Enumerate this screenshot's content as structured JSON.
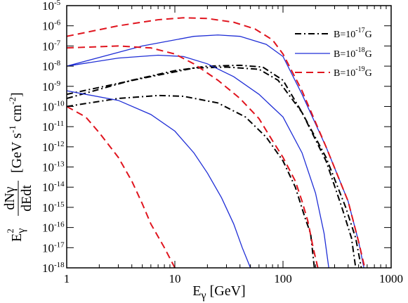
{
  "chart_data": {
    "type": "line",
    "xscale": "log",
    "yscale": "log",
    "xlim": [
      1,
      1000
    ],
    "ylim": [
      1e-18,
      1e-05
    ],
    "x_ticks": [
      {
        "value": 1,
        "label": "1"
      },
      {
        "value": 10,
        "label": "10"
      },
      {
        "value": 100,
        "label": "100"
      },
      {
        "value": 1000,
        "label": "1000"
      }
    ],
    "y_ticks": [
      {
        "value": -5,
        "base": "10",
        "exp": "-5"
      },
      {
        "value": -6,
        "base": "10",
        "exp": "-6"
      },
      {
        "value": -7,
        "base": "10",
        "exp": "-7"
      },
      {
        "value": -8,
        "base": "10",
        "exp": "-8"
      },
      {
        "value": -9,
        "base": "10",
        "exp": "-9"
      },
      {
        "value": -10,
        "base": "10",
        "exp": "-10"
      },
      {
        "value": -11,
        "base": "10",
        "exp": "-11"
      },
      {
        "value": -12,
        "base": "10",
        "exp": "-12"
      },
      {
        "value": -13,
        "base": "10",
        "exp": "-13"
      },
      {
        "value": -14,
        "base": "10",
        "exp": "-14"
      },
      {
        "value": -15,
        "base": "10",
        "exp": "-15"
      },
      {
        "value": -16,
        "base": "10",
        "exp": "-16"
      },
      {
        "value": -17,
        "base": "10",
        "exp": "-17"
      },
      {
        "value": -18,
        "base": "10",
        "exp": "-18"
      }
    ],
    "xlabel": {
      "main": "E",
      "sub": "γ",
      "unit": " [GeV]"
    },
    "ylabel": {
      "prefix": "E",
      "prefix_sub": "γ",
      "prefix_sup": "2",
      "frac_num": "dNγ",
      "frac_den": "dEdt",
      "unit": "[GeV s",
      "unit_sup1": "-1",
      "unit_mid": " cm",
      "unit_sup2": "-2",
      "unit_end": "]"
    },
    "legend_position": "top-right",
    "legend": [
      {
        "base": "B=10",
        "exp": "-17",
        "unit": "G",
        "color": "#000000",
        "dash": "dash-dot"
      },
      {
        "base": "B=10",
        "exp": "-18",
        "unit": "G",
        "color": "#1f2ed6",
        "dash": "solid"
      },
      {
        "base": "B=10",
        "exp": "-19",
        "unit": "G",
        "color": "#e0141e",
        "dash": "dashed"
      }
    ],
    "series": [
      {
        "group": "B=10^-17G",
        "color": "#000000",
        "dash": "dash-dot",
        "points": [
          [
            1,
            4e-10
          ],
          [
            5,
            2.5e-09
          ],
          [
            15,
            8e-09
          ],
          [
            30,
            9e-09
          ],
          [
            60,
            7e-09
          ],
          [
            90,
            2e-09
          ],
          [
            150,
            5e-11
          ],
          [
            250,
            2e-13
          ],
          [
            350,
            1e-15
          ],
          [
            430,
            3e-17
          ],
          [
            470,
            1e-18
          ]
        ]
      },
      {
        "group": "B=10^-17G",
        "color": "#000000",
        "dash": "dash-dot",
        "points": [
          [
            1,
            2.5e-10
          ],
          [
            4,
            2e-09
          ],
          [
            10,
            6e-09
          ],
          [
            20,
            1e-08
          ],
          [
            40,
            1.1e-08
          ],
          [
            65,
            9e-09
          ],
          [
            100,
            2e-09
          ],
          [
            150,
            5e-11
          ],
          [
            250,
            3e-13
          ],
          [
            380,
            1e-15
          ],
          [
            470,
            3e-17
          ],
          [
            530,
            1e-18
          ]
        ]
      },
      {
        "group": "B=10^-17G",
        "color": "#000000",
        "dash": "dash-dot",
        "points": [
          [
            1,
            1e-10
          ],
          [
            3,
            2.5e-10
          ],
          [
            7,
            3.5e-10
          ],
          [
            12,
            3.2e-10
          ],
          [
            25,
            1.5e-10
          ],
          [
            45,
            3e-11
          ],
          [
            70,
            3e-12
          ],
          [
            100,
            2e-13
          ],
          [
            130,
            1e-14
          ],
          [
            160,
            3e-16
          ],
          [
            180,
            5e-17
          ],
          [
            195,
            1e-18
          ]
        ]
      },
      {
        "group": "B=10^-18G",
        "color": "#1f2ed6",
        "dash": "solid",
        "points": [
          [
            1,
            1e-08
          ],
          [
            5,
            1e-07
          ],
          [
            15,
            3e-07
          ],
          [
            25,
            3.5e-07
          ],
          [
            40,
            3e-07
          ],
          [
            70,
            1.2e-07
          ],
          [
            100,
            3e-08
          ],
          [
            150,
            4e-10
          ],
          [
            250,
            1e-12
          ],
          [
            400,
            2e-15
          ],
          [
            500,
            2e-17
          ],
          [
            560,
            1e-18
          ]
        ]
      },
      {
        "group": "B=10^-18G",
        "color": "#1f2ed6",
        "dash": "solid",
        "points": [
          [
            1,
            1e-08
          ],
          [
            3,
            2.5e-08
          ],
          [
            7,
            3.5e-08
          ],
          [
            12,
            3e-08
          ],
          [
            20,
            1.3e-08
          ],
          [
            35,
            3e-09
          ],
          [
            60,
            4e-10
          ],
          [
            100,
            3e-11
          ],
          [
            150,
            5e-13
          ],
          [
            200,
            5e-15
          ],
          [
            240,
            5e-17
          ],
          [
            265,
            1e-18
          ]
        ]
      },
      {
        "group": "B=10^-18G",
        "color": "#1f2ed6",
        "dash": "solid",
        "points": [
          [
            1,
            6e-10
          ],
          [
            3,
            2e-10
          ],
          [
            6,
            4e-11
          ],
          [
            10,
            6e-12
          ],
          [
            15,
            5e-13
          ],
          [
            20,
            5e-14
          ],
          [
            27,
            3e-15
          ],
          [
            35,
            1.5e-16
          ],
          [
            42,
            1e-17
          ],
          [
            50,
            1e-18
          ]
        ]
      },
      {
        "group": "B=10^-19G",
        "color": "#e0141e",
        "dash": "dashed",
        "points": [
          [
            1,
            3e-07
          ],
          [
            3,
            1e-06
          ],
          [
            7,
            2e-06
          ],
          [
            12,
            2.5e-06
          ],
          [
            20,
            2.3e-06
          ],
          [
            35,
            1.5e-06
          ],
          [
            55,
            7e-07
          ],
          [
            80,
            2e-07
          ],
          [
            100,
            4e-08
          ],
          [
            150,
            6e-10
          ],
          [
            250,
            1e-12
          ],
          [
            400,
            2e-15
          ],
          [
            500,
            2e-17
          ],
          [
            570,
            1e-18
          ]
        ]
      },
      {
        "group": "B=10^-19G",
        "color": "#e0141e",
        "dash": "dashed",
        "points": [
          [
            1,
            8e-08
          ],
          [
            3,
            1e-07
          ],
          [
            6,
            8e-08
          ],
          [
            10,
            4e-08
          ],
          [
            15,
            1.3e-08
          ],
          [
            25,
            2e-09
          ],
          [
            40,
            2.5e-10
          ],
          [
            60,
            2.5e-11
          ],
          [
            80,
            2e-12
          ],
          [
            100,
            3e-13
          ],
          [
            130,
            2e-14
          ],
          [
            150,
            2e-15
          ],
          [
            170,
            2e-16
          ],
          [
            190,
            1e-17
          ],
          [
            210,
            1e-18
          ]
        ]
      },
      {
        "group": "B=10^-19G",
        "color": "#e0141e",
        "dash": "dashed",
        "points": [
          [
            1,
            1e-10
          ],
          [
            1.5,
            3e-11
          ],
          [
            2,
            5e-12
          ],
          [
            3,
            3e-13
          ],
          [
            4,
            2e-14
          ],
          [
            5,
            1.5e-15
          ],
          [
            6,
            1.5e-16
          ],
          [
            8,
            1e-17
          ],
          [
            10,
            1e-18
          ]
        ]
      }
    ]
  }
}
